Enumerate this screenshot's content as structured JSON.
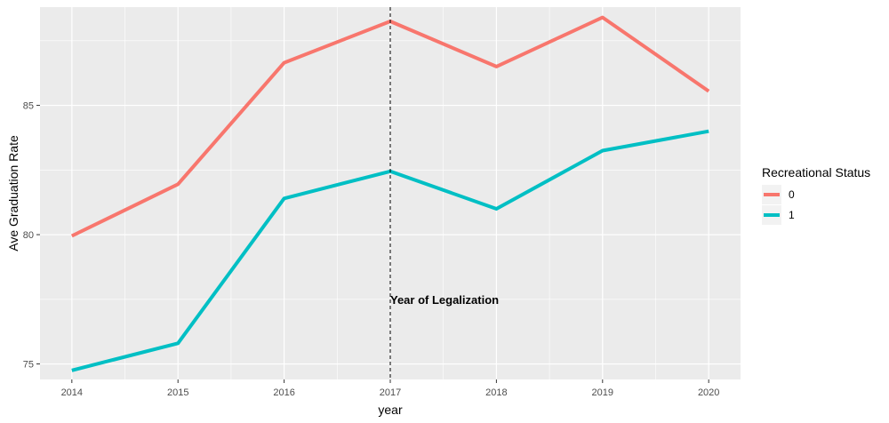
{
  "chart_data": {
    "type": "line",
    "title": "",
    "xlabel": "year",
    "ylabel": "Ave Graduation Rate",
    "x": [
      2014,
      2015,
      2016,
      2017,
      2018,
      2019,
      2020
    ],
    "xlim": [
      2013.7,
      2020.3
    ],
    "ylim": [
      74.4,
      88.8
    ],
    "y_ticks": [
      75,
      80,
      85
    ],
    "y_minor_ticks": [
      77.5,
      82.5,
      87.5
    ],
    "x_ticks": [
      2014,
      2015,
      2016,
      2017,
      2018,
      2019,
      2020
    ],
    "grid": true,
    "legend": {
      "title": "Recreational Status",
      "position": "right"
    },
    "series": [
      {
        "name": "0",
        "color": "#F8766D",
        "values": [
          79.95,
          81.95,
          86.65,
          88.25,
          86.5,
          88.4,
          85.55
        ]
      },
      {
        "name": "1",
        "color": "#00BFC4",
        "values": [
          74.75,
          75.8,
          81.4,
          82.45,
          81.0,
          83.25,
          84.0
        ]
      }
    ],
    "vline": {
      "x": 2017,
      "style": "dashed",
      "label": "Year of Legalization",
      "label_y": 77.5
    }
  }
}
